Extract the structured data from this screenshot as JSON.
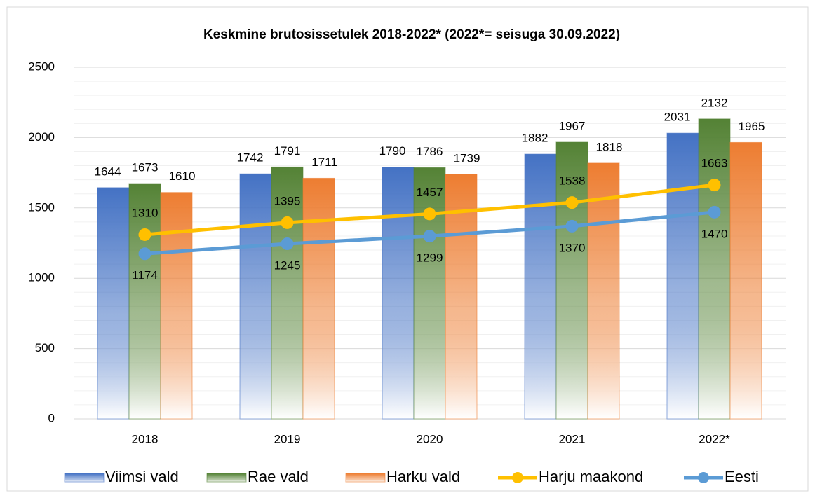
{
  "chart_data": {
    "type": "bar",
    "title": "Keskmine brutosissetulek 2018-2022* (2022*= seisuga 30.09.2022)",
    "categories": [
      "2018",
      "2019",
      "2020",
      "2021",
      "2022*"
    ],
    "series": [
      {
        "name": "Viimsi vald",
        "type": "bar",
        "color": "#4472c4",
        "values": [
          1644,
          1742,
          1790,
          1882,
          2031
        ]
      },
      {
        "name": "Rae vald",
        "type": "bar",
        "color": "#548235",
        "values": [
          1673,
          1791,
          1786,
          1967,
          2132
        ]
      },
      {
        "name": "Harku vald",
        "type": "bar",
        "color": "#ed7d31",
        "values": [
          1610,
          1711,
          1739,
          1818,
          1965
        ]
      },
      {
        "name": "Harju maakond",
        "type": "line",
        "color": "#ffc000",
        "values": [
          1310,
          1395,
          1457,
          1538,
          1663
        ]
      },
      {
        "name": "Eesti",
        "type": "line",
        "color": "#5b9bd5",
        "values": [
          1174,
          1245,
          1299,
          1370,
          1470
        ]
      }
    ],
    "ylim": [
      0,
      2500
    ],
    "yticks": [
      0,
      500,
      1000,
      1500,
      2000,
      2500
    ],
    "grid": true,
    "legend": "bottom"
  }
}
